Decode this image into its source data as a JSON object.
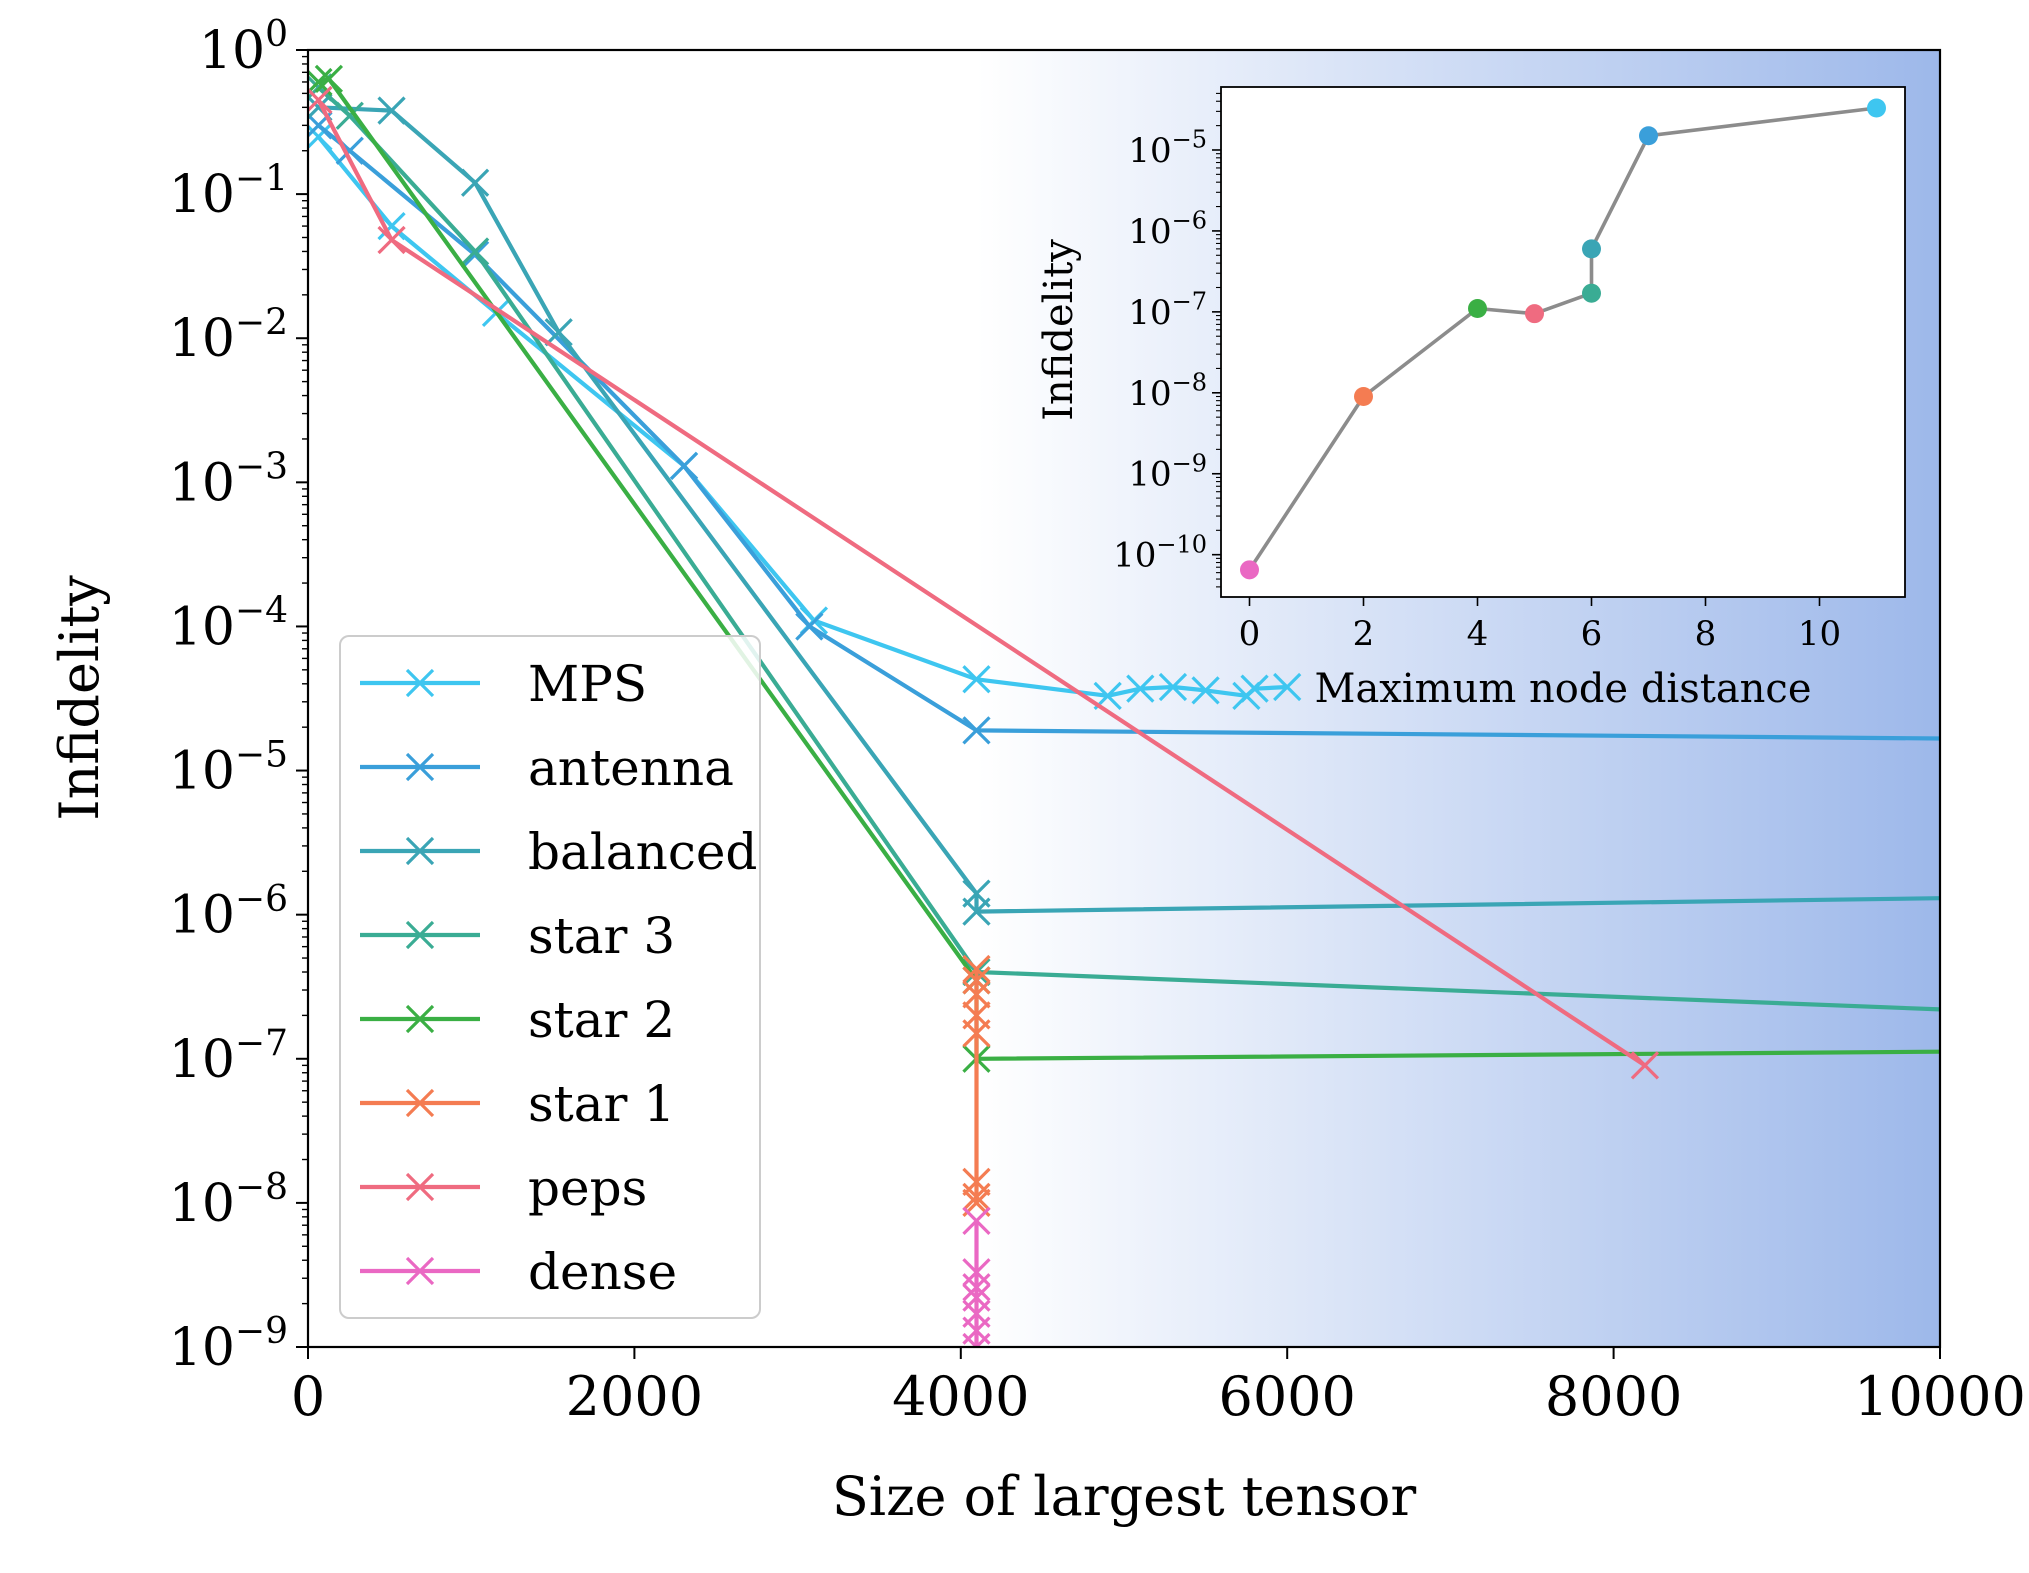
{
  "chart_data": [
    {
      "type": "line",
      "title": "",
      "xlabel": "Size of largest tensor",
      "ylabel": "Infidelity",
      "xlim": [
        0,
        10000
      ],
      "ylim": [
        1e-09,
        1
      ],
      "yscale": "log",
      "xticks": [
        "0",
        "2000",
        "4000",
        "6000",
        "8000",
        "10000"
      ],
      "xtick_values": [
        0,
        2000,
        4000,
        6000,
        8000,
        10000
      ],
      "yticks": [
        {
          "base": "10",
          "exp": "0",
          "value": 1
        },
        {
          "base": "10",
          "exp": "−1",
          "value": 0.1
        },
        {
          "base": "10",
          "exp": "−2",
          "value": 0.01
        },
        {
          "base": "10",
          "exp": "−3",
          "value": 0.001
        },
        {
          "base": "10",
          "exp": "−4",
          "value": 0.0001
        },
        {
          "base": "10",
          "exp": "−5",
          "value": 1e-05
        },
        {
          "base": "10",
          "exp": "−6",
          "value": 1e-06
        },
        {
          "base": "10",
          "exp": "−7",
          "value": 1e-07
        },
        {
          "base": "10",
          "exp": "−8",
          "value": 1e-08
        },
        {
          "base": "10",
          "exp": "−9",
          "value": 1e-09
        }
      ],
      "marker": "x",
      "shaded_region": {
        "x_start": 4096,
        "x_end": 10000,
        "color_from": "#ffffff",
        "color_to": "#9db8ea"
      },
      "legend_position": "lower-left",
      "series": [
        {
          "name": "MPS",
          "color": "#3ec6f0",
          "points": [
            [
              64,
              0.25
            ],
            [
              512,
              0.06
            ],
            [
              1152,
              0.015
            ],
            [
              2304,
              0.0013
            ],
            [
              3100,
              0.00011
            ],
            [
              4096,
              4.3e-05
            ],
            [
              4900,
              3.3e-05
            ],
            [
              5100,
              3.7e-05
            ],
            [
              5300,
              3.8e-05
            ],
            [
              5500,
              3.6e-05
            ],
            [
              5750,
              3.3e-05
            ],
            [
              5800,
              3.7e-05
            ],
            [
              6000,
              3.8e-05
            ]
          ]
        },
        {
          "name": "antenna",
          "color": "#3a9fda",
          "points": [
            [
              64,
              0.3
            ],
            [
              256,
              0.2
            ],
            [
              1024,
              0.038
            ],
            [
              2304,
              0.0013
            ],
            [
              3072,
              0.0001
            ],
            [
              4096,
              1.9e-05
            ],
            [
              10000,
              1.67e-05
            ]
          ]
        },
        {
          "name": "balanced",
          "color": "#3aa5b5",
          "points": [
            [
              64,
              0.4
            ],
            [
              512,
              0.38
            ],
            [
              1024,
              0.12
            ],
            [
              1536,
              0.011
            ],
            [
              4096,
              1.4e-06
            ],
            [
              4096,
              1.05e-06
            ],
            [
              10000,
              1.3e-06
            ]
          ]
        },
        {
          "name": "star 3",
          "color": "#3aac94",
          "points": [
            [
              64,
              0.55
            ],
            [
              256,
              0.35
            ],
            [
              1024,
              0.04
            ],
            [
              4096,
              4e-07
            ],
            [
              10000,
              2.2e-07
            ]
          ]
        },
        {
          "name": "star 2",
          "color": "#3aaf44",
          "points": [
            [
              64,
              0.6
            ],
            [
              128,
              0.63
            ],
            [
              4096,
              3.5e-07
            ],
            [
              4096,
              1e-07
            ],
            [
              10000,
              1.12e-07
            ]
          ]
        },
        {
          "name": "star 1",
          "color": "#f47c52",
          "points": [
            [
              4096,
              4.2e-07
            ],
            [
              4096,
              3.5e-07
            ],
            [
              4096,
              2.8e-07
            ],
            [
              4096,
              2e-07
            ],
            [
              4096,
              1.5e-07
            ],
            [
              4096,
              1.4e-08
            ],
            [
              4096,
              1.1e-08
            ],
            [
              4096,
              1e-08
            ]
          ]
        },
        {
          "name": "peps",
          "color": "#ef6b80",
          "points": [
            [
              64,
              0.45
            ],
            [
              512,
              0.048
            ],
            [
              8192,
              9e-08
            ]
          ]
        },
        {
          "name": "dense",
          "color": "#ea68c3",
          "points": [
            [
              4096,
              7.5e-09
            ],
            [
              4096,
              3.3e-09
            ],
            [
              4096,
              2.6e-09
            ],
            [
              4096,
              2.2e-09
            ],
            [
              4096,
              1.7e-09
            ],
            [
              4096,
              1.3e-09
            ],
            [
              4096,
              1e-09
            ]
          ]
        }
      ]
    },
    {
      "type": "line",
      "title": "",
      "xlabel": "Maximum node distance",
      "ylabel": "Infidelity",
      "xlim": [
        -0.5,
        11.5
      ],
      "ylim": [
        3e-11,
        6e-05
      ],
      "yscale": "log",
      "xticks": [
        "0",
        "2",
        "4",
        "6",
        "8",
        "10"
      ],
      "xtick_values": [
        0,
        2,
        4,
        6,
        8,
        10
      ],
      "yticks": [
        {
          "base": "10",
          "exp": "−5",
          "value": 1e-05
        },
        {
          "base": "10",
          "exp": "−6",
          "value": 1e-06
        },
        {
          "base": "10",
          "exp": "−7",
          "value": 1e-07
        },
        {
          "base": "10",
          "exp": "−8",
          "value": 1e-08
        },
        {
          "base": "10",
          "exp": "−9",
          "value": 1e-09
        },
        {
          "base": "10",
          "exp": "−10",
          "value": 1e-10
        }
      ],
      "line_color": "#8c8c8c",
      "points": [
        {
          "x": 0,
          "y": 6.5e-11,
          "color": "#ea68c3"
        },
        {
          "x": 2,
          "y": 9e-09,
          "color": "#f47c52"
        },
        {
          "x": 4,
          "y": 1.1e-07,
          "color": "#3aaf44"
        },
        {
          "x": 5,
          "y": 9.5e-08,
          "color": "#ef6b80"
        },
        {
          "x": 6,
          "y": 1.7e-07,
          "color": "#3aac94"
        },
        {
          "x": 6,
          "y": 6e-07,
          "color": "#3aa5b5"
        },
        {
          "x": 7,
          "y": 1.5e-05,
          "color": "#3a9fda"
        },
        {
          "x": 11,
          "y": 3.3e-05,
          "color": "#3ec6f0"
        }
      ]
    }
  ]
}
